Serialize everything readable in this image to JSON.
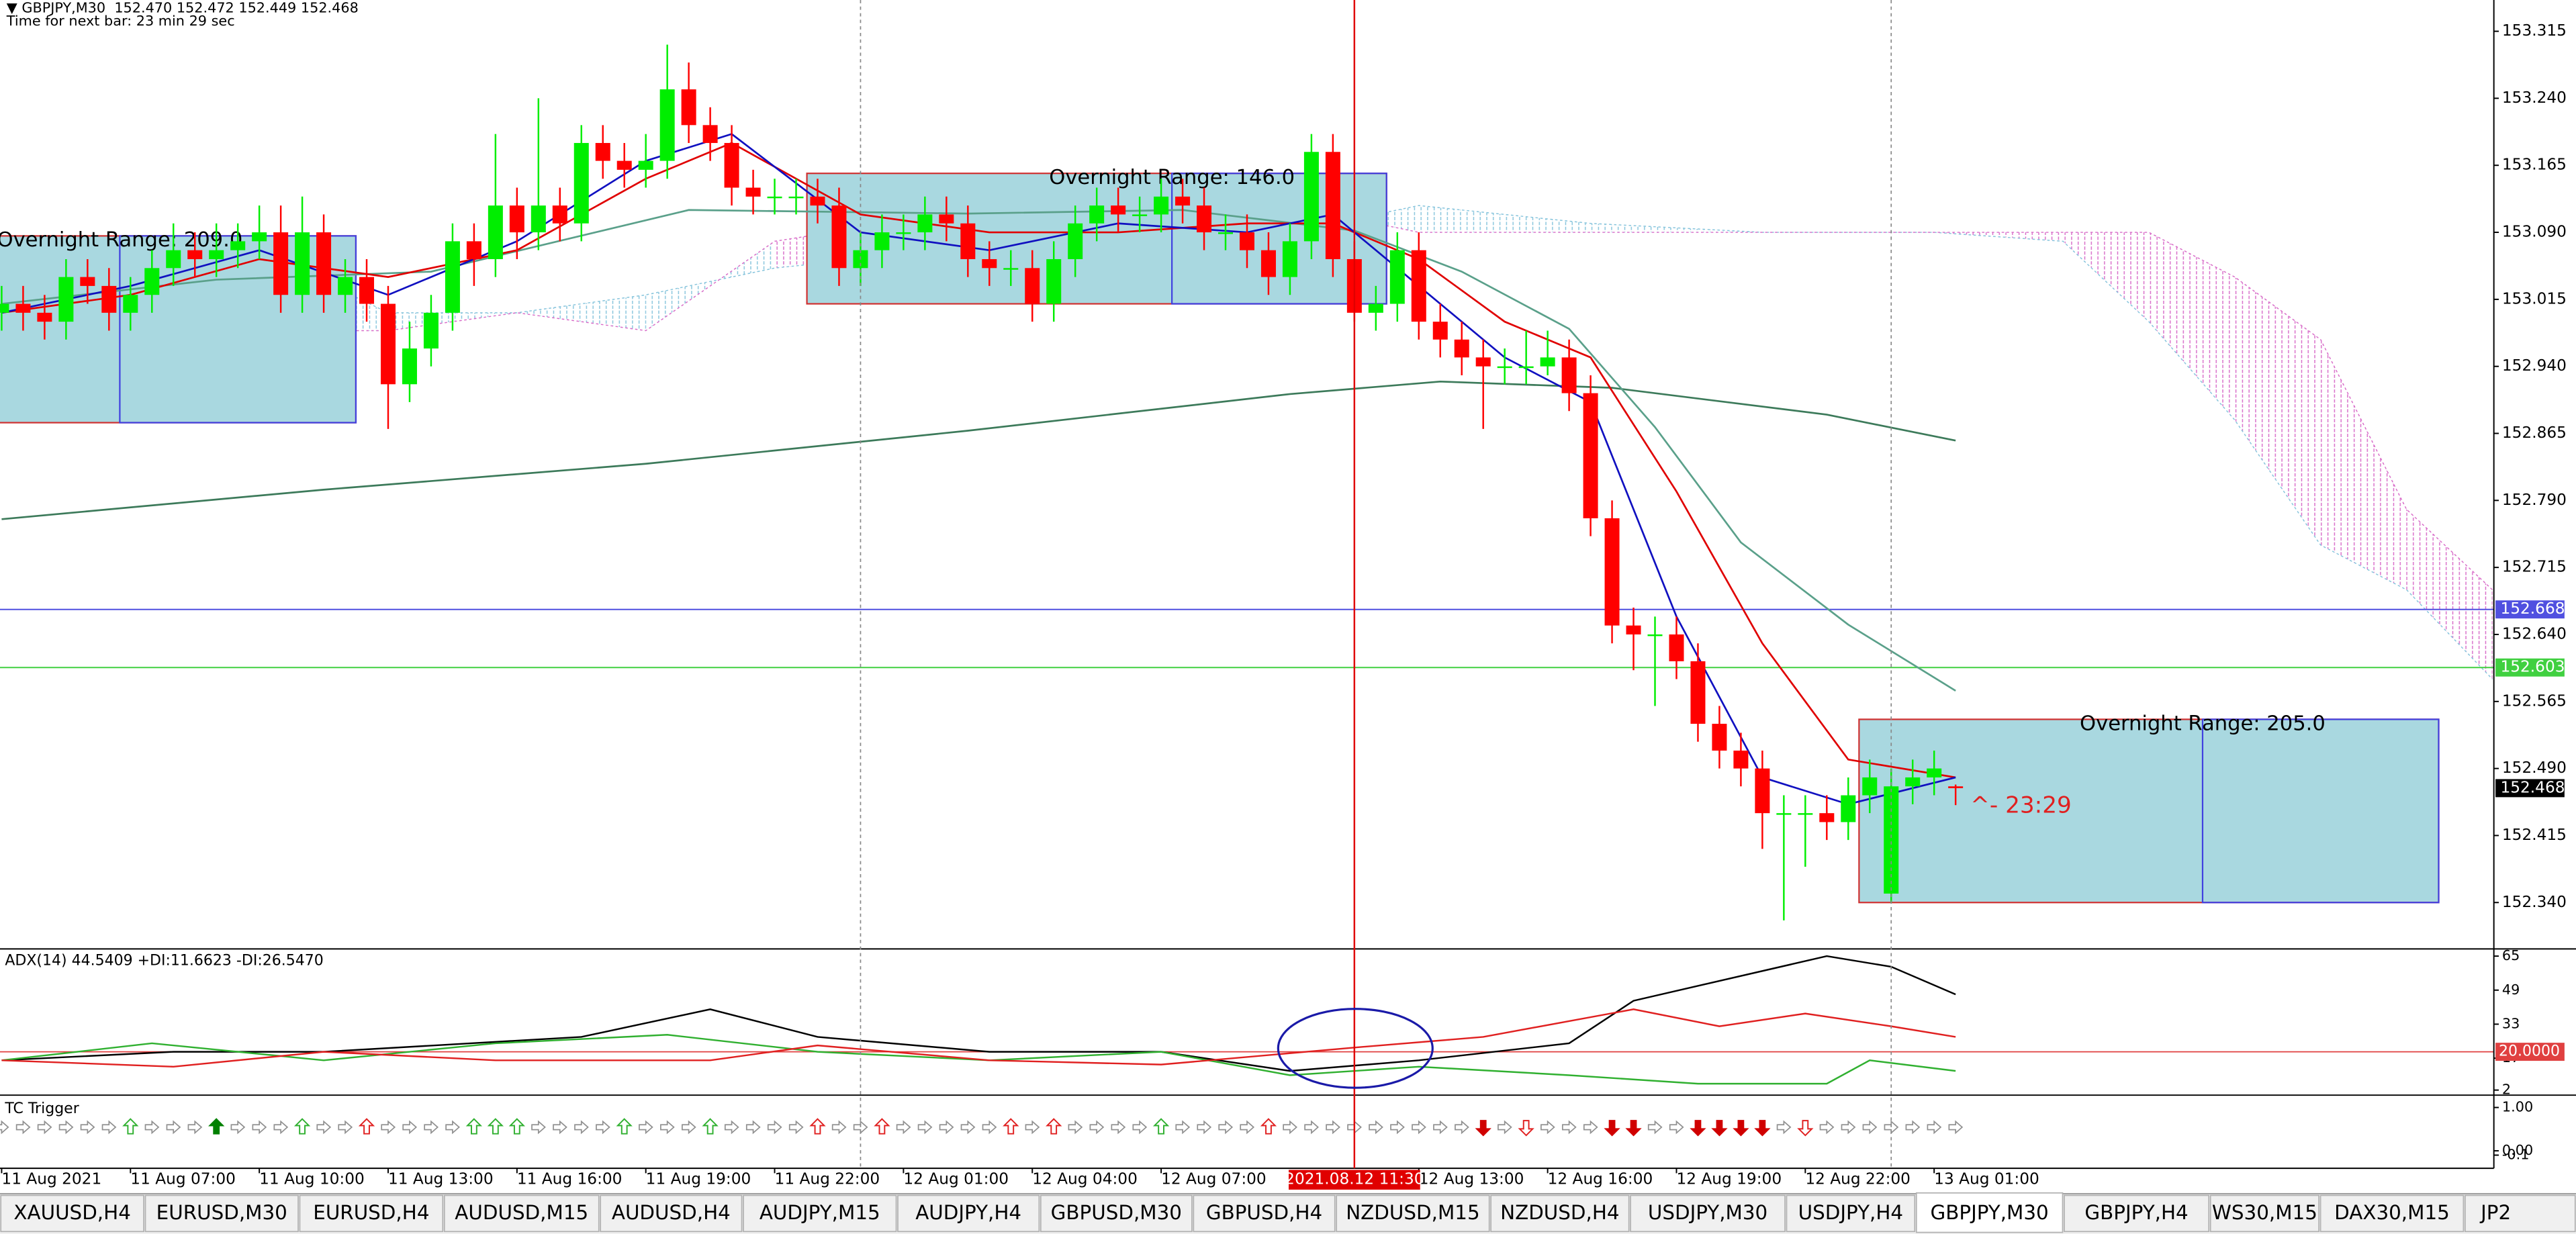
{
  "chart_data": [
    {
      "type": "candlestick",
      "title": "▼ GBPJPY,M30  152.470 152.472 152.449 152.468",
      "subtitle": "Time for next bar: 23 min 29 sec",
      "ylim": [
        152.289,
        153.35
      ],
      "yticks": [
        153.315,
        {
          "value": 153.24,
          "label": "153.240"
        },
        153.165,
        {
          "value": 153.09,
          "label": "153.090"
        },
        153.015,
        {
          "value": 152.94,
          "label": "152.940"
        },
        152.865,
        {
          "value": 152.79,
          "label": "152.790"
        },
        152.715,
        {
          "value": 152.64,
          "label": "152.640"
        },
        152.565,
        {
          "value": 152.49,
          "label": "152.490"
        },
        152.415,
        {
          "value": 152.34,
          "label": "152.340"
        }
      ],
      "xticks": [
        {
          "value": 0,
          "label": "11 Aug 2021"
        },
        {
          "value": 6,
          "label": "11 Aug 07:00"
        },
        {
          "value": 12,
          "label": "11 Aug 10:00"
        },
        {
          "value": 18,
          "label": "11 Aug 13:00"
        },
        {
          "value": 24,
          "label": "11 Aug 16:00"
        },
        {
          "value": 30,
          "label": "11 Aug 19:00"
        },
        {
          "value": 36,
          "label": "11 Aug 22:00"
        },
        {
          "value": 42,
          "label": "12 Aug 01:00"
        },
        {
          "value": 48,
          "label": "12 Aug 04:00"
        },
        {
          "value": 54,
          "label": "12 Aug 07:00"
        },
        {
          "value": 66,
          "label": "12 Aug 13:00"
        },
        {
          "value": 72,
          "label": "12 Aug 16:00"
        },
        {
          "value": 78,
          "label": "12 Aug 19:00"
        },
        {
          "value": 84,
          "label": "12 Aug 22:00"
        },
        {
          "value": 90,
          "label": "13 Aug 01:00"
        }
      ],
      "up_color": "#00ee00",
      "down_color": "#ff0000",
      "open": [
        153.0,
        153.01,
        153.0,
        152.99,
        153.04,
        153.03,
        153.0,
        153.02,
        153.05,
        153.07,
        153.06,
        153.07,
        153.08,
        153.09,
        153.02,
        153.09,
        153.02,
        153.04,
        153.01,
        152.92,
        152.96,
        153.0,
        153.08,
        153.06,
        153.12,
        153.09,
        153.12,
        153.1,
        153.19,
        153.17,
        153.16,
        153.17,
        153.25,
        153.21,
        153.19,
        153.14,
        153.13,
        153.13,
        153.13,
        153.12,
        153.05,
        153.07,
        153.09,
        153.09,
        153.11,
        153.1,
        153.06,
        153.05,
        153.05,
        153.01,
        153.06,
        153.1,
        153.12,
        153.11,
        153.11,
        153.13,
        153.12,
        153.09,
        153.09,
        153.07,
        153.04,
        153.08,
        153.18,
        153.06,
        153.0,
        153.01,
        153.07,
        152.99,
        152.97,
        152.95,
        152.94,
        152.94,
        152.94,
        152.95,
        152.91,
        152.77,
        152.65,
        152.64,
        152.64,
        152.61,
        152.54,
        152.51,
        152.49,
        152.44,
        152.44,
        152.44,
        152.43,
        152.46,
        152.35,
        152.47,
        152.48,
        152.47
      ],
      "high": [
        153.03,
        153.03,
        153.02,
        153.06,
        153.06,
        153.05,
        153.04,
        153.07,
        153.1,
        153.09,
        153.1,
        153.1,
        153.12,
        153.12,
        153.13,
        153.11,
        153.06,
        153.06,
        153.03,
        152.99,
        153.02,
        153.1,
        153.1,
        153.2,
        153.14,
        153.24,
        153.14,
        153.21,
        153.21,
        153.19,
        153.2,
        153.3,
        153.28,
        153.23,
        153.21,
        153.16,
        153.15,
        153.15,
        153.15,
        153.14,
        153.09,
        153.11,
        153.11,
        153.13,
        153.13,
        153.12,
        153.08,
        153.07,
        153.07,
        153.08,
        153.12,
        153.14,
        153.14,
        153.13,
        153.15,
        153.15,
        153.14,
        153.11,
        153.11,
        153.09,
        153.1,
        153.2,
        153.2,
        153.08,
        153.03,
        153.09,
        153.09,
        153.01,
        152.99,
        152.97,
        152.96,
        152.98,
        152.98,
        152.97,
        152.93,
        152.79,
        152.67,
        152.66,
        152.66,
        152.63,
        152.56,
        152.53,
        152.51,
        152.46,
        152.46,
        152.46,
        152.48,
        152.5,
        152.49,
        152.5,
        152.51,
        152.472
      ],
      "low": [
        152.98,
        152.98,
        152.97,
        152.97,
        153.01,
        152.98,
        152.98,
        153.0,
        153.03,
        153.04,
        153.04,
        153.05,
        153.06,
        153.0,
        153.0,
        153.0,
        153.0,
        152.99,
        152.87,
        152.9,
        152.94,
        152.98,
        153.03,
        153.04,
        153.06,
        153.07,
        153.08,
        153.08,
        153.15,
        153.14,
        153.14,
        153.15,
        153.19,
        153.17,
        153.12,
        153.11,
        153.11,
        153.11,
        153.1,
        153.03,
        153.03,
        153.05,
        153.07,
        153.07,
        153.08,
        153.04,
        153.03,
        153.03,
        152.99,
        152.99,
        153.04,
        153.08,
        153.09,
        153.09,
        153.09,
        153.1,
        153.07,
        153.07,
        153.05,
        153.02,
        153.02,
        153.06,
        153.04,
        152.99,
        152.98,
        152.99,
        152.97,
        152.95,
        152.93,
        152.87,
        152.92,
        152.92,
        152.93,
        152.89,
        152.75,
        152.63,
        152.6,
        152.56,
        152.59,
        152.52,
        152.49,
        152.47,
        152.4,
        152.32,
        152.38,
        152.41,
        152.41,
        152.44,
        152.34,
        152.45,
        152.46,
        152.449
      ],
      "close": [
        153.01,
        153.0,
        152.99,
        153.04,
        153.03,
        153.0,
        153.02,
        153.05,
        153.07,
        153.06,
        153.07,
        153.08,
        153.09,
        153.02,
        153.09,
        153.02,
        153.04,
        153.01,
        152.92,
        152.96,
        153.0,
        153.08,
        153.06,
        153.12,
        153.09,
        153.12,
        153.1,
        153.19,
        153.17,
        153.16,
        153.17,
        153.25,
        153.21,
        153.19,
        153.14,
        153.13,
        153.13,
        153.13,
        153.12,
        153.05,
        153.07,
        153.09,
        153.09,
        153.11,
        153.1,
        153.06,
        153.05,
        153.05,
        153.01,
        153.06,
        153.1,
        153.12,
        153.11,
        153.11,
        153.13,
        153.12,
        153.09,
        153.09,
        153.07,
        153.04,
        153.08,
        153.18,
        153.06,
        153.0,
        153.01,
        153.07,
        152.99,
        152.97,
        152.95,
        152.94,
        152.94,
        152.94,
        152.95,
        152.91,
        152.77,
        152.65,
        152.64,
        152.64,
        152.61,
        152.54,
        152.51,
        152.49,
        152.44,
        152.44,
        152.44,
        152.43,
        152.46,
        152.48,
        152.47,
        152.48,
        152.49,
        152.468
      ],
      "lines": [
        {
          "color": "#3c7a5a",
          "x": [
            0,
            15,
            30,
            45,
            60,
            67,
            75,
            85,
            91
          ],
          "values": [
            152.769,
            152.802,
            152.831,
            152.868,
            152.909,
            152.923,
            152.916,
            152.886,
            152.857
          ]
        },
        {
          "color": "#5aa08a",
          "x": [
            0,
            10,
            20,
            32,
            45,
            55,
            63,
            68,
            73,
            77,
            81,
            86,
            91
          ],
          "values": [
            153.01,
            153.037,
            153.046,
            153.115,
            153.111,
            153.115,
            153.092,
            153.046,
            152.982,
            152.872,
            152.743,
            152.651,
            152.577
          ]
        },
        {
          "color": "#e00000",
          "x": [
            0,
            6,
            12,
            18,
            24,
            30,
            34,
            40,
            46,
            52,
            58,
            62,
            66,
            70,
            74,
            78,
            82,
            86,
            91
          ],
          "values": [
            153.0,
            153.02,
            153.06,
            153.04,
            153.07,
            153.15,
            153.19,
            153.11,
            153.09,
            153.09,
            153.1,
            153.1,
            153.06,
            152.99,
            152.95,
            152.8,
            152.63,
            152.5,
            152.48
          ]
        },
        {
          "color": "#1010c0",
          "x": [
            0,
            6,
            12,
            18,
            24,
            30,
            34,
            40,
            46,
            52,
            58,
            62,
            66,
            70,
            74,
            78,
            82,
            86,
            91
          ],
          "values": [
            153.0,
            153.03,
            153.07,
            153.02,
            153.08,
            153.17,
            153.2,
            153.09,
            153.07,
            153.1,
            153.09,
            153.11,
            153.03,
            152.95,
            152.9,
            152.66,
            152.48,
            152.45,
            152.48
          ]
        }
      ],
      "cloud": {
        "x": [
          0,
          12,
          18,
          24,
          30,
          36,
          44,
          52,
          60,
          66,
          74,
          82,
          90,
          96,
          100,
          104,
          108,
          112,
          116
        ],
        "span_a": [
          153.07,
          153.07,
          153.0,
          153.0,
          153.02,
          153.05,
          153.07,
          153.07,
          153.09,
          153.12,
          153.1,
          153.09,
          153.09,
          153.08,
          152.99,
          152.88,
          152.74,
          152.69,
          152.59
        ],
        "span_b": [
          152.98,
          152.98,
          152.98,
          153.0,
          152.98,
          153.08,
          153.11,
          153.11,
          153.12,
          153.09,
          153.09,
          153.09,
          153.09,
          153.09,
          153.09,
          153.04,
          152.97,
          152.78,
          152.69
        ],
        "bull_color": "#86c4dc",
        "bear_color": "#d86cc8"
      },
      "overnight_ranges": [
        {
          "label": "Overnight Range: 209.0",
          "high": 153.086,
          "low": 152.877,
          "start": 0,
          "mid": 6,
          "end": 16
        },
        {
          "label": "Overnight Range: 146.0",
          "high": 153.156,
          "low": 153.01,
          "start": 38,
          "mid": 55,
          "end": 64
        },
        {
          "label": "Overnight Range: 205.0",
          "high": 152.545,
          "low": 152.34,
          "start": 87,
          "mid": 103,
          "end": 113
        }
      ],
      "box_fill": "#a9d8e0",
      "price_lines": [
        {
          "value": 152.668,
          "color": "#5050e0"
        },
        {
          "value": 152.603,
          "color": "#40d040"
        }
      ],
      "current_price": {
        "value": 152.468,
        "color": "#000000"
      },
      "separators": [
        40,
        88
      ],
      "crosshair": {
        "bar": 63,
        "label": "2021.08.12 11:30",
        "color": "#e00000"
      },
      "countdown": "^- 23:29"
    },
    {
      "type": "line",
      "title": "ADX(14) 44.5409 +DI:11.6623 -DI:26.5470",
      "ylim": [
        0,
        68
      ],
      "yticks": [
        65,
        49,
        33,
        17,
        2
      ],
      "level": {
        "value": 20,
        "label": "20.0000",
        "color": "#e04040"
      },
      "series": [
        {
          "color": "#000000",
          "x": [
            0,
            8,
            15,
            27,
            33,
            38,
            46,
            54,
            60,
            66,
            73,
            76,
            85,
            88,
            91
          ],
          "values": [
            16,
            20,
            20,
            27,
            40,
            27,
            20,
            20,
            11,
            16,
            24,
            44,
            65,
            60,
            47
          ]
        },
        {
          "color": "#30b030",
          "x": [
            0,
            7,
            15,
            23,
            31,
            38,
            46,
            54,
            60,
            66,
            73,
            79,
            85,
            87,
            91
          ],
          "values": [
            16,
            24,
            16,
            24,
            28,
            20,
            16,
            20,
            9,
            13,
            9,
            5,
            5,
            16,
            11
          ]
        },
        {
          "color": "#e02020",
          "x": [
            0,
            8,
            15,
            23,
            33,
            38,
            46,
            54,
            63,
            69,
            76,
            80,
            84,
            88,
            91
          ],
          "values": [
            16,
            13,
            20,
            16,
            16,
            23,
            16,
            14,
            22,
            27,
            40,
            32,
            38,
            32,
            27
          ]
        }
      ]
    },
    {
      "type": "arrows",
      "title": "TC Trigger",
      "ylim": [
        -0.1,
        1
      ],
      "yticks": [
        {
          "value": 1,
          "label": "1.00"
        },
        {
          "value": 0,
          "label": "0.00"
        },
        -0.1
      ],
      "green_up_strong": [
        10
      ],
      "green_up": [
        6,
        14,
        22,
        23,
        24,
        29,
        33,
        54
      ],
      "red_up": [
        17,
        38,
        41,
        47,
        49,
        59
      ],
      "red_down": [
        71,
        84
      ],
      "red_down_strong": [
        69,
        75,
        76,
        79,
        80,
        81,
        82
      ]
    }
  ],
  "tabs": [
    "XAUUSD,H4",
    "EURUSD,M30",
    "EURUSD,H4",
    "AUDUSD,M15",
    "AUDUSD,H4",
    "AUDJPY,M15",
    "AUDJPY,H4",
    "GBPUSD,M30",
    "GBPUSD,H4",
    "NZDUSD,M15",
    "NZDUSD,H4",
    "USDJPY,M30",
    "USDJPY,H4",
    "GBPJPY,M30",
    "GBPJPY,H4",
    "WS30,M15",
    "DAX30,M15",
    "JP2"
  ],
  "active_tab": "GBPJPY,M30"
}
